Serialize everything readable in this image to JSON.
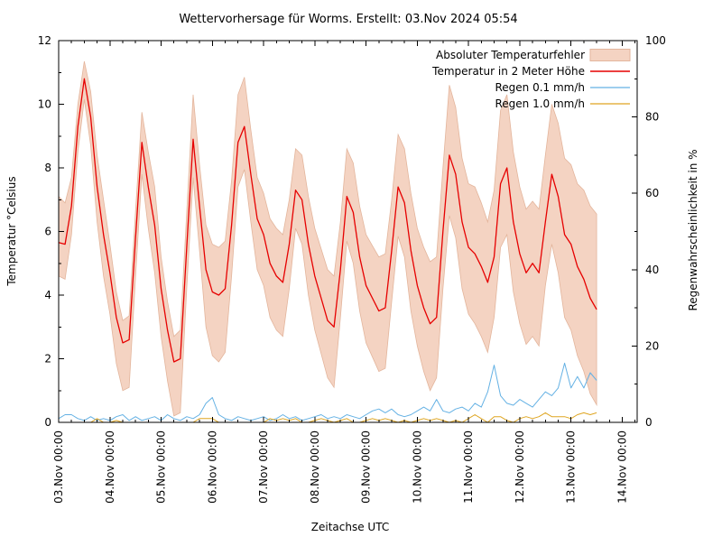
{
  "chart_data": {
    "type": "line",
    "title": "Wettervorhersage für Worms. Erstellt: 03.Nov 2024 05:54",
    "x_axis": {
      "label": "Zeitachse UTC",
      "tick_labels": [
        "03.Nov 00:00",
        "04.Nov 00:00",
        "05.Nov 00:00",
        "06.Nov 00:00",
        "07.Nov 00:00",
        "08.Nov 00:00",
        "09.Nov 00:00",
        "10.Nov 00:00",
        "11.Nov 00:00",
        "12.Nov 00:00",
        "13.Nov 00:00",
        "14.Nov 00:00"
      ],
      "tick_hours": [
        0,
        24,
        48,
        72,
        96,
        120,
        144,
        168,
        192,
        216,
        240,
        264
      ],
      "minor_tick_step_hours": 6,
      "range_hours": [
        0,
        271
      ]
    },
    "y_left": {
      "label": "Temperatur °Celsius",
      "ticks": [
        0,
        2,
        4,
        6,
        8,
        10,
        12
      ],
      "minor_step": 1,
      "range": [
        0,
        12
      ]
    },
    "y_right": {
      "label": "Regenwahrscheinlichkeit in %",
      "ticks": [
        0,
        20,
        40,
        60,
        80,
        100
      ],
      "minor_step": 10,
      "range": [
        0,
        100
      ]
    },
    "sample_start": "03.Nov 00:00",
    "sample_step_hours": 3,
    "series": [
      {
        "name": "Absoluter Temperaturfehler",
        "kind": "band",
        "axis": "left",
        "fill": "#f4d3c2",
        "edge": "#e3b59c",
        "upper": [
          7.1,
          6.9,
          7.7,
          10.0,
          11.35,
          10.4,
          8.4,
          7.0,
          5.6,
          4.1,
          3.2,
          3.35,
          6.65,
          9.75,
          8.5,
          7.4,
          5.2,
          3.8,
          2.7,
          2.9,
          6.6,
          10.3,
          8.1,
          6.2,
          5.6,
          5.5,
          5.7,
          7.6,
          10.3,
          10.85,
          9.2,
          7.7,
          7.2,
          6.4,
          6.1,
          5.9,
          7.0,
          8.6,
          8.4,
          7.1,
          6.1,
          5.45,
          4.8,
          4.6,
          6.3,
          8.6,
          8.15,
          6.8,
          5.9,
          5.55,
          5.2,
          5.3,
          7.0,
          9.05,
          8.6,
          7.2,
          6.1,
          5.5,
          5.05,
          5.2,
          8.0,
          10.6,
          9.9,
          8.3,
          7.5,
          7.4,
          6.9,
          6.3,
          7.3,
          9.8,
          10.3,
          8.5,
          7.4,
          6.7,
          6.95,
          6.7,
          8.4,
          10.0,
          9.4,
          8.3,
          8.1,
          7.5,
          7.3,
          6.8,
          6.55
        ],
        "lower": [
          4.6,
          4.5,
          5.9,
          8.5,
          10.15,
          8.7,
          6.3,
          4.6,
          3.4,
          1.85,
          1.0,
          1.1,
          4.6,
          7.8,
          6.1,
          4.7,
          2.7,
          1.3,
          0.2,
          0.3,
          4.2,
          7.7,
          5.4,
          3.0,
          2.1,
          1.9,
          2.2,
          4.6,
          7.4,
          7.95,
          6.3,
          4.8,
          4.3,
          3.3,
          2.9,
          2.7,
          4.2,
          6.1,
          5.6,
          4.0,
          2.9,
          2.15,
          1.4,
          1.1,
          3.3,
          5.7,
          5.0,
          3.5,
          2.5,
          2.05,
          1.6,
          1.7,
          3.8,
          5.85,
          5.2,
          3.5,
          2.4,
          1.6,
          1.0,
          1.4,
          4.2,
          6.5,
          5.8,
          4.2,
          3.4,
          3.1,
          2.7,
          2.2,
          3.3,
          5.5,
          5.9,
          4.1,
          3.1,
          2.45,
          2.7,
          2.4,
          4.3,
          5.6,
          4.7,
          3.3,
          2.9,
          2.1,
          1.6,
          0.9,
          0.55
        ]
      },
      {
        "name": "Temperatur in 2 Meter Höhe",
        "kind": "line",
        "axis": "left",
        "color": "#e60000",
        "width": 1.3,
        "values": [
          5.65,
          5.6,
          6.8,
          9.3,
          10.8,
          9.6,
          7.4,
          5.9,
          4.7,
          3.3,
          2.5,
          2.6,
          5.8,
          8.8,
          7.4,
          6.2,
          4.2,
          2.9,
          1.9,
          2.0,
          5.5,
          8.9,
          6.8,
          4.8,
          4.1,
          4.0,
          4.2,
          6.2,
          8.8,
          9.3,
          7.8,
          6.4,
          5.9,
          5.0,
          4.6,
          4.4,
          5.6,
          7.3,
          7.0,
          5.6,
          4.6,
          3.9,
          3.2,
          3.0,
          4.8,
          7.1,
          6.6,
          5.2,
          4.3,
          3.9,
          3.5,
          3.6,
          5.4,
          7.4,
          6.9,
          5.4,
          4.3,
          3.6,
          3.1,
          3.3,
          6.0,
          8.4,
          7.8,
          6.3,
          5.5,
          5.3,
          4.9,
          4.4,
          5.2,
          7.5,
          8.0,
          6.3,
          5.3,
          4.7,
          5.0,
          4.7,
          6.3,
          7.8,
          7.1,
          5.9,
          5.6,
          4.9,
          4.5,
          3.9,
          3.55
        ]
      },
      {
        "name": "Regen 0.1 mm/h",
        "kind": "line",
        "axis": "right",
        "color": "#64b1e4",
        "width": 1.0,
        "values": [
          1,
          2,
          2,
          1,
          0.5,
          1.5,
          0.5,
          1,
          0.5,
          1.5,
          2,
          0.5,
          1.5,
          0.5,
          1,
          1.5,
          0.5,
          2,
          1,
          0.5,
          1.5,
          1,
          2,
          5,
          6.5,
          2,
          1,
          0.5,
          1.5,
          1,
          0.5,
          1,
          1.5,
          0.5,
          1,
          2,
          1,
          1.5,
          0.5,
          1,
          1.5,
          2,
          1,
          1.5,
          1,
          2,
          1.5,
          1,
          2,
          3,
          3.5,
          2.5,
          3.5,
          2,
          1.5,
          2,
          3,
          4,
          3,
          6,
          3,
          2.5,
          3.5,
          4,
          3,
          5,
          4,
          8,
          15,
          7,
          5,
          4.5,
          6,
          5,
          4,
          6,
          8,
          7,
          9,
          15.5,
          9,
          12,
          9,
          13,
          11
        ]
      },
      {
        "name": "Regen 1.0 mm/h",
        "kind": "line",
        "axis": "right",
        "color": "#dfa520",
        "width": 1.0,
        "values": [
          0,
          0,
          0,
          0,
          0,
          0,
          1,
          0,
          0,
          0.5,
          0,
          0,
          0,
          0,
          0,
          0,
          0,
          0,
          0,
          0,
          0,
          0,
          1,
          1,
          1,
          0,
          0,
          0,
          0,
          0,
          0,
          0,
          0,
          1,
          0.5,
          1,
          0.5,
          1,
          0,
          0,
          0.5,
          1,
          0.5,
          0,
          0.5,
          1,
          0,
          0,
          0.5,
          1,
          0.5,
          1,
          0.5,
          0,
          0.5,
          0,
          0.5,
          1,
          0.5,
          1,
          0.5,
          0,
          0.5,
          0,
          1,
          2,
          1,
          0,
          1.5,
          1.5,
          0.5,
          0,
          1,
          1.5,
          1,
          1.5,
          2.5,
          1.5,
          1.5,
          1.5,
          1,
          2,
          2.5,
          2,
          2.5
        ]
      }
    ],
    "legend_position": "top-right",
    "grid": false
  }
}
